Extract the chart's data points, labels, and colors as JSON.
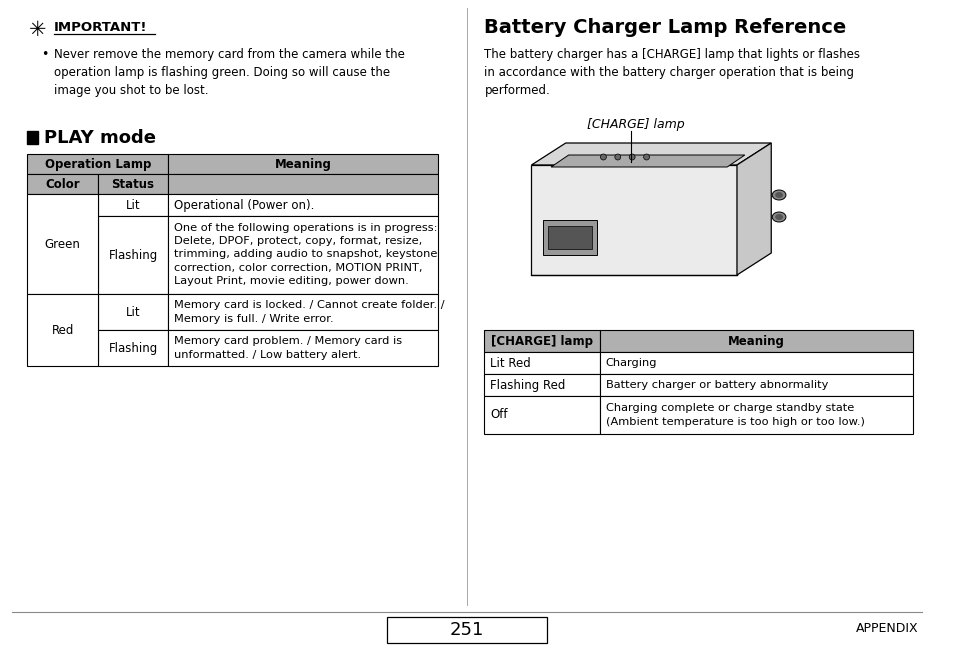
{
  "bg_color": "#ffffff",
  "page_number": "251",
  "footer_right": "APPENDIX",
  "left_panel": {
    "important_title": "IMPORTANT!",
    "important_bullet": "Never remove the memory card from the camera while the\noperation lamp is flashing green. Doing so will cause the\nimage you shot to be lost.",
    "play_mode_title": "PLAY mode",
    "table_header_col1": "Operation Lamp",
    "table_header_col2": "Meaning",
    "table_header_color": "#b0b0b0",
    "table_col1": "Color",
    "table_col2": "Status",
    "rows": [
      {
        "color": "",
        "status": "Lit",
        "meaning": "Operational (Power on)."
      },
      {
        "color": "Green",
        "status": "Flashing",
        "meaning": "One of the following operations is in progress:\nDelete, DPOF, protect, copy, format, resize,\ntrimming, adding audio to snapshot, keystone\ncorrection, color correction, MOTION PRINT,\nLayout Print, movie editing, power down."
      },
      {
        "color": "",
        "status": "Lit",
        "meaning": "Memory card is locked. / Cannot create folder. /\nMemory is full. / Write error."
      },
      {
        "color": "Red",
        "status": "Flashing",
        "meaning": "Memory card problem. / Memory card is\nunformatted. / Low battery alert."
      }
    ]
  },
  "right_panel": {
    "title": "Battery Charger Lamp Reference",
    "description": "The battery charger has a [CHARGE] lamp that lights or flashes\nin accordance with the battery charger operation that is being\nperformed.",
    "charge_lamp_label": "[CHARGE] lamp",
    "table_header_col1": "[CHARGE] lamp",
    "table_header_col2": "Meaning",
    "table_header_color": "#b0b0b0",
    "rows": [
      {
        "lamp": "Lit Red",
        "meaning": "Charging"
      },
      {
        "lamp": "Flashing Red",
        "meaning": "Battery charger or battery abnormality"
      },
      {
        "lamp": "Off",
        "meaning": "Charging complete or charge standby state\n(Ambient temperature is too high or too low.)"
      }
    ]
  }
}
